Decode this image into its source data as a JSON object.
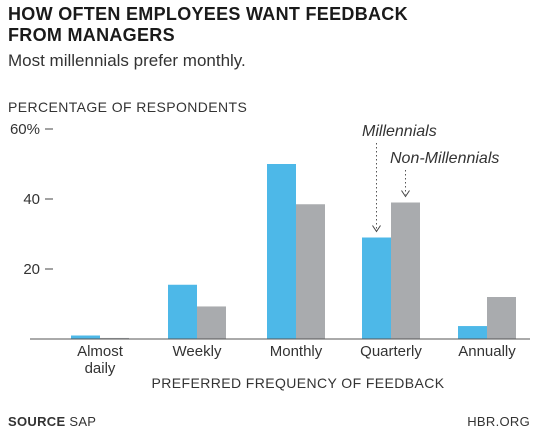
{
  "header": {
    "title_line1": "HOW OFTEN EMPLOYEES WANT FEEDBACK",
    "title_line2": "FROM MANAGERS",
    "subtitle": "Most millennials prefer monthly."
  },
  "footer": {
    "source_label": "SOURCE",
    "source_value": "SAP",
    "site": "HBR.ORG"
  },
  "colors": {
    "millennials": "#4db8e8",
    "non_millennials": "#a9abae"
  },
  "chart_data": {
    "type": "bar",
    "title": "HOW OFTEN EMPLOYEES WANT FEEDBACK FROM MANAGERS",
    "subtitle": "Most millennials prefer monthly.",
    "ylabel": "PERCENTAGE OF RESPONDENTS",
    "xlabel": "PREFERRED FREQUENCY OF FEEDBACK",
    "categories": [
      [
        "Almost",
        "daily"
      ],
      [
        "Weekly"
      ],
      [
        "Monthly"
      ],
      [
        "Quarterly"
      ],
      [
        "Annually"
      ]
    ],
    "series": [
      {
        "name": "Millennials",
        "values": [
          1,
          15.5,
          50,
          29,
          3.7
        ]
      },
      {
        "name": "Non-Millennials",
        "values": [
          0.3,
          9.3,
          38.5,
          39,
          12
        ]
      }
    ],
    "ylim": [
      0,
      60
    ],
    "yticks": [
      {
        "value": 20,
        "label": "20"
      },
      {
        "value": 40,
        "label": "40"
      },
      {
        "value": 60,
        "label": "60%"
      }
    ],
    "grid": false,
    "legend": "annotated above Quarterly bars"
  }
}
